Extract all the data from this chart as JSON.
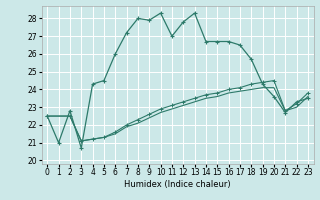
{
  "xlabel": "Humidex (Indice chaleur)",
  "bg_color": "#cce8e8",
  "grid_color": "#ffffff",
  "line_color": "#2d7a6a",
  "xlim": [
    -0.5,
    23.5
  ],
  "ylim": [
    19.8,
    28.7
  ],
  "yticks": [
    20,
    21,
    22,
    23,
    24,
    25,
    26,
    27,
    28
  ],
  "xticks": [
    0,
    1,
    2,
    3,
    4,
    5,
    6,
    7,
    8,
    9,
    10,
    11,
    12,
    13,
    14,
    15,
    16,
    17,
    18,
    19,
    20,
    21,
    22,
    23
  ],
  "line1_x": [
    0,
    1,
    2,
    3,
    4,
    5,
    6,
    7,
    8,
    9,
    10,
    11,
    12,
    13,
    14,
    15,
    16,
    17,
    18,
    19,
    20,
    21,
    22,
    23
  ],
  "line1_y": [
    22.5,
    21.0,
    22.8,
    20.7,
    24.3,
    24.5,
    26.0,
    27.2,
    28.0,
    27.9,
    28.3,
    27.0,
    27.8,
    28.3,
    26.7,
    26.7,
    26.7,
    26.5,
    25.7,
    24.3,
    23.6,
    22.7,
    23.3,
    23.5
  ],
  "line2_x": [
    0,
    2,
    3,
    4,
    5,
    6,
    7,
    8,
    9,
    10,
    11,
    12,
    13,
    14,
    15,
    16,
    17,
    18,
    19,
    20,
    21,
    22,
    23
  ],
  "line2_y": [
    22.5,
    22.5,
    21.1,
    21.2,
    21.3,
    21.6,
    22.0,
    22.3,
    22.6,
    22.9,
    23.1,
    23.3,
    23.5,
    23.7,
    23.8,
    24.0,
    24.1,
    24.3,
    24.4,
    24.5,
    22.8,
    23.2,
    23.8
  ],
  "line3_x": [
    0,
    2,
    3,
    4,
    5,
    6,
    7,
    8,
    9,
    10,
    11,
    12,
    13,
    14,
    15,
    16,
    17,
    18,
    19,
    20,
    21,
    22,
    23
  ],
  "line3_y": [
    22.5,
    22.5,
    21.1,
    21.2,
    21.3,
    21.5,
    21.9,
    22.1,
    22.4,
    22.7,
    22.9,
    23.1,
    23.3,
    23.5,
    23.6,
    23.8,
    23.9,
    24.0,
    24.1,
    24.1,
    22.8,
    23.0,
    23.6
  ],
  "xlabel_fontsize": 6,
  "tick_fontsize": 5.5,
  "linewidth_main": 0.9,
  "linewidth_sub": 0.8,
  "marker_size": 3.5
}
